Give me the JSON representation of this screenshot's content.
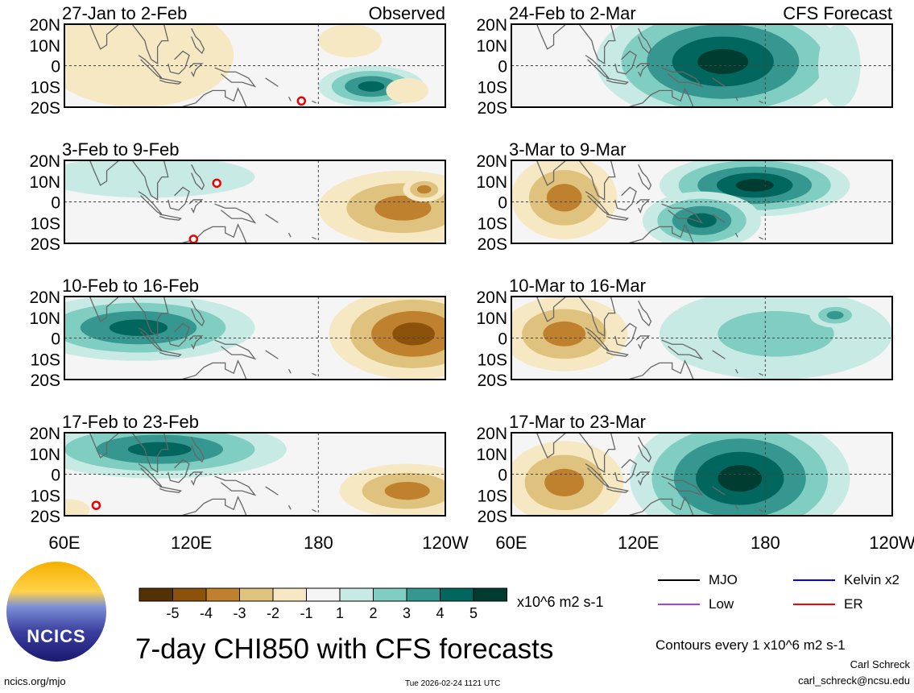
{
  "colors": {
    "levels": [
      -5,
      -4,
      -3,
      -2,
      -1,
      0,
      1,
      2,
      3,
      4,
      5
    ],
    "fill": [
      "#543005",
      "#8c510a",
      "#bf812d",
      "#dfc27d",
      "#f6e8c3",
      "#f5f5f5",
      "#c7eae5",
      "#80cdc1",
      "#35978f",
      "#01665e",
      "#003c30"
    ]
  },
  "chart_data": {
    "type": "heatmap",
    "title": "7-day CHI850 with CFS forecasts",
    "units": "x10^6 m2 s-1",
    "lat_ticks": [
      "20N",
      "10N",
      "0",
      "10S",
      "20S"
    ],
    "lon_ticks": [
      "60E",
      "120E",
      "180",
      "120W"
    ],
    "lon_range": [
      60,
      240
    ],
    "lat_range": [
      -20,
      20
    ],
    "colorbar_ticks": [
      "-5",
      "-4",
      "-3",
      "-2",
      "-1",
      "1",
      "2",
      "3",
      "4",
      "5"
    ],
    "panels": [
      {
        "title": "27-Jan to 2-Feb",
        "tag": "Observed",
        "centers": [
          {
            "lon": 95,
            "lat": 5,
            "rx": 45,
            "ry": 25,
            "level": -1
          },
          {
            "lon": 205,
            "lat": -10,
            "rx": 25,
            "ry": 10,
            "level": 4
          },
          {
            "lon": 222,
            "lat": -12,
            "rx": 10,
            "ry": 6,
            "level": -1
          },
          {
            "lon": 195,
            "lat": 12,
            "rx": 15,
            "ry": 8,
            "level": -1
          }
        ],
        "markers": [
          {
            "lon": 172,
            "lat": -17
          }
        ]
      },
      {
        "title": "3-Feb to 9-Feb",
        "tag": "",
        "centers": [
          {
            "lon": 100,
            "lat": 12,
            "rx": 50,
            "ry": 10,
            "level": 1
          },
          {
            "lon": 220,
            "lat": -3,
            "rx": 40,
            "ry": 18,
            "level": -3
          },
          {
            "lon": 230,
            "lat": 6,
            "rx": 10,
            "ry": 6,
            "level": -3
          }
        ],
        "markers": [
          {
            "lon": 132,
            "lat": 9
          },
          {
            "lon": 121,
            "lat": -18
          }
        ]
      },
      {
        "title": "10-Feb to 16-Feb",
        "tag": "",
        "centers": [
          {
            "lon": 95,
            "lat": 5,
            "rx": 55,
            "ry": 16,
            "level": 4
          },
          {
            "lon": 225,
            "lat": 2,
            "rx": 40,
            "ry": 22,
            "level": -4
          }
        ],
        "markers": []
      },
      {
        "title": "17-Feb to 23-Feb",
        "tag": "",
        "centers": [
          {
            "lon": 105,
            "lat": 12,
            "rx": 60,
            "ry": 14,
            "level": 4
          },
          {
            "lon": 222,
            "lat": -8,
            "rx": 32,
            "ry": 13,
            "level": -3
          },
          {
            "lon": 62,
            "lat": -17,
            "rx": 10,
            "ry": 5,
            "level": -1
          }
        ],
        "markers": [
          {
            "lon": 75,
            "lat": -15
          }
        ]
      },
      {
        "title": "24-Feb to 2-Mar",
        "tag": "CFS Forecast",
        "centers": [
          {
            "lon": 160,
            "lat": 2,
            "rx": 60,
            "ry": 30,
            "level": 5
          },
          {
            "lon": 215,
            "lat": 0,
            "rx": 10,
            "ry": 20,
            "level": 1
          }
        ],
        "markers": []
      },
      {
        "title": "3-Mar to 9-Mar",
        "tag": "",
        "centers": [
          {
            "lon": 85,
            "lat": 2,
            "rx": 25,
            "ry": 20,
            "level": -3
          },
          {
            "lon": 175,
            "lat": 8,
            "rx": 45,
            "ry": 15,
            "level": 5
          },
          {
            "lon": 150,
            "lat": -9,
            "rx": 28,
            "ry": 14,
            "level": 4
          }
        ],
        "markers": []
      },
      {
        "title": "10-Mar to 16-Mar",
        "tag": "",
        "centers": [
          {
            "lon": 85,
            "lat": 2,
            "rx": 30,
            "ry": 18,
            "level": -3
          },
          {
            "lon": 185,
            "lat": 2,
            "rx": 55,
            "ry": 22,
            "level": 2
          },
          {
            "lon": 213,
            "lat": 11,
            "rx": 12,
            "ry": 6,
            "level": 3
          }
        ],
        "markers": []
      },
      {
        "title": "17-Mar to 23-Mar",
        "tag": "",
        "centers": [
          {
            "lon": 85,
            "lat": -4,
            "rx": 28,
            "ry": 20,
            "level": -3
          },
          {
            "lon": 168,
            "lat": -2,
            "rx": 52,
            "ry": 32,
            "level": 5
          }
        ],
        "markers": []
      }
    ]
  },
  "legend": {
    "items": [
      {
        "label": "MJO",
        "color": "#000000"
      },
      {
        "label": "Kelvin x2",
        "color": "#0000ff"
      },
      {
        "label": "Low",
        "color": "#a040ff"
      },
      {
        "label": "ER",
        "color": "#ff0000"
      }
    ],
    "contours_note": "Contours every 1 x10^6 m2 s-1"
  },
  "footer": {
    "author": "Carl Schreck",
    "email": "carl_schreck@ncsu.edu",
    "url": "ncics.org/mjo",
    "timestamp": "Tue 2026-02-24 1121 UTC",
    "logo_text": "NCICS"
  }
}
